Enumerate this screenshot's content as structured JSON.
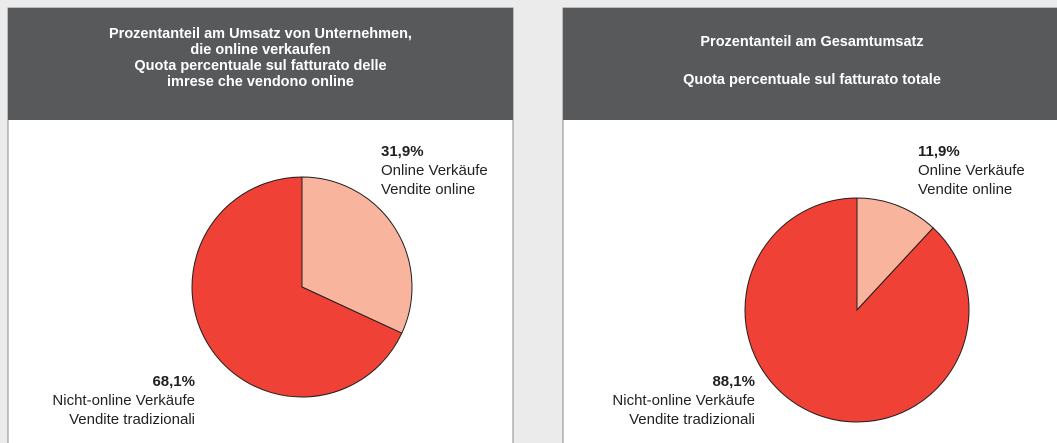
{
  "chart_data": [
    {
      "type": "pie",
      "title": [
        "Prozentanteil am Umsatz von Unternehmen,",
        "die online verkaufen",
        "Quota percentuale sul fatturato delle",
        "imrese che vendono online"
      ],
      "categories": [
        [
          "Online Verkäufe",
          "Vendite online"
        ],
        [
          "Nicht-online Verkäufe",
          "Vendite tradizionali"
        ]
      ],
      "values": [
        31.9,
        68.1
      ],
      "value_labels": [
        "31,9%",
        "68,1%"
      ],
      "colors": [
        "#f8b49c",
        "#ef4136"
      ]
    },
    {
      "type": "pie",
      "title": [
        "Prozentanteil am Gesamtumsatz",
        "Quota percentuale sul fatturato totale"
      ],
      "categories": [
        [
          "Online Verkäufe",
          "Vendite online"
        ],
        [
          "Nicht-online Verkäufe",
          "Vendite tradizionali"
        ]
      ],
      "values": [
        11.9,
        88.1
      ],
      "value_labels": [
        "11,9%",
        "88,1%"
      ],
      "colors": [
        "#f8b49c",
        "#ef4136"
      ]
    }
  ]
}
